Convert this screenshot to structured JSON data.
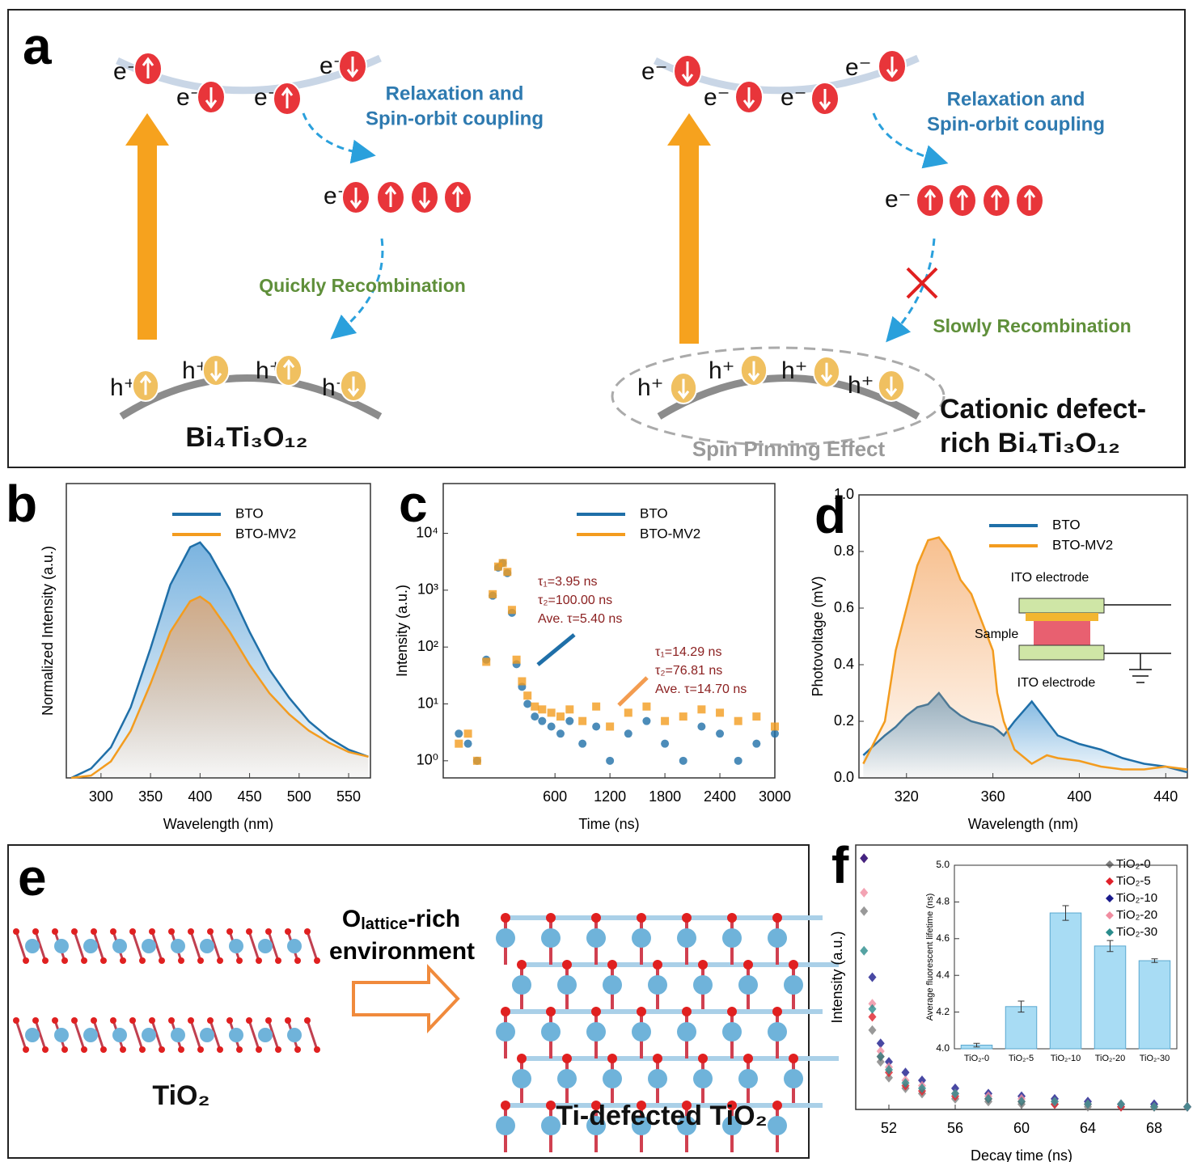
{
  "panels": {
    "a": {
      "label": "a",
      "left": {
        "e": [
          "e⁻",
          "e⁻",
          "e⁻",
          "e⁻",
          "e⁻"
        ],
        "h": [
          "h⁺",
          "h⁺",
          "h⁺",
          "h⁺"
        ],
        "relax1": "Relaxation and",
        "relax2": "Spin-orbit coupling",
        "recomb": "Quickly Recombination",
        "name": "Bi₄Ti₃O₁₂"
      },
      "right": {
        "e": [
          "e⁻",
          "e⁻",
          "e⁻",
          "e⁻",
          "e⁻"
        ],
        "h": [
          "h⁺",
          "h⁺",
          "h⁺",
          "h⁺"
        ],
        "relax1": "Relaxation and",
        "relax2": "Spin-orbit coupling",
        "recomb": "Slowly Recombination",
        "pin": "Spin Pinning Effect",
        "name1": "Cationic defect-",
        "name2": "rich Bi₄Ti₃O₁₂"
      }
    },
    "e": {
      "label": "e",
      "left": "TiO₂",
      "right": "Ti-defected TiO₂",
      "arrow_main": "O",
      "arrow_sub": "lattice",
      "arrow_rest": "-rich",
      "arrow2": "environment"
    }
  },
  "chart_data": [
    {
      "type": "line",
      "panel_label": "b",
      "xlabel": "Wavelength (nm)",
      "ylabel": "Normalized Intensity (a.u.)",
      "area": true,
      "legend": "upper right",
      "x": [
        270,
        290,
        310,
        330,
        350,
        370,
        390,
        400,
        410,
        430,
        450,
        470,
        490,
        510,
        530,
        550,
        570
      ],
      "xlim": [
        265,
        572
      ],
      "xticks": [
        300,
        350,
        400,
        450,
        500,
        550
      ],
      "ylim": [
        0,
        1.25
      ],
      "series": [
        {
          "name": "BTO",
          "color": "#1f6fa8",
          "values": [
            0.0,
            0.04,
            0.13,
            0.3,
            0.55,
            0.82,
            0.98,
            1.0,
            0.95,
            0.8,
            0.62,
            0.46,
            0.34,
            0.24,
            0.17,
            0.12,
            0.09
          ]
        },
        {
          "name": "BTO-MV2",
          "color": "#f39c1f",
          "values": [
            0.0,
            0.01,
            0.07,
            0.2,
            0.4,
            0.62,
            0.75,
            0.77,
            0.74,
            0.62,
            0.48,
            0.36,
            0.27,
            0.2,
            0.15,
            0.11,
            0.09
          ]
        }
      ]
    },
    {
      "type": "scatter",
      "panel_label": "c",
      "xlabel": "Time (ns)",
      "ylabel": "Intensity (a.u.)",
      "log_y": true,
      "legend": "upper right",
      "x": [
        -450,
        -350,
        -250,
        -150,
        -80,
        -20,
        30,
        80,
        130,
        180,
        240,
        300,
        380,
        460,
        560,
        660,
        760,
        900,
        1050,
        1200,
        1400,
        1600,
        1800,
        2000,
        2200,
        2400,
        2600,
        2800,
        3000
      ],
      "xlim": [
        -620,
        3000
      ],
      "xticks": [
        600,
        1200,
        1800,
        2400,
        3000
      ],
      "ylim": [
        0.5,
        75000
      ],
      "yticks": [
        {
          "value": 1,
          "label": "10⁰"
        },
        {
          "value": 10,
          "label": "10¹"
        },
        {
          "value": 100,
          "label": "10²"
        },
        {
          "value": 1000,
          "label": "10³"
        },
        {
          "value": 10000,
          "label": "10⁴"
        }
      ],
      "series": [
        {
          "name": "BTO",
          "color": "#1f6fa8",
          "marker": "circle",
          "values": [
            3,
            2,
            1,
            60,
            800,
            2500,
            3000,
            2000,
            400,
            50,
            20,
            10,
            6,
            5,
            4,
            3,
            5,
            2,
            4,
            1,
            3,
            5,
            2,
            1,
            4,
            3,
            1,
            2,
            3
          ]
        },
        {
          "name": "BTO-MV2",
          "color": "#f39c1f",
          "marker": "square",
          "values": [
            2,
            3,
            1,
            55,
            850,
            2600,
            3000,
            2100,
            450,
            60,
            25,
            14,
            9,
            8,
            7,
            6,
            8,
            5,
            9,
            4,
            7,
            9,
            5,
            6,
            8,
            7,
            5,
            6,
            4
          ]
        }
      ],
      "annotations": [
        "τ₁=3.95 ns",
        "τ₂=100.00 ns",
        "Ave. τ=5.40 ns",
        "τ₁=14.29 ns",
        "τ₂=76.81 ns",
        "Ave. τ=14.70 ns"
      ]
    },
    {
      "type": "line",
      "panel_label": "d",
      "xlabel": "Wavelength (nm)",
      "ylabel": "Photovoltage (mV)",
      "area": true,
      "legend": "upper right",
      "x": [
        300,
        310,
        315,
        320,
        325,
        330,
        335,
        340,
        345,
        350,
        355,
        360,
        362,
        365,
        370,
        378,
        385,
        390,
        400,
        410,
        420,
        430,
        440,
        450
      ],
      "xlim": [
        298,
        450
      ],
      "xticks": [
        320,
        360,
        400,
        440
      ],
      "ylim": [
        0,
        1.0
      ],
      "yticks": [
        {
          "value": 0,
          "label": "0.0"
        },
        {
          "value": 0.2,
          "label": "0.2"
        },
        {
          "value": 0.4,
          "label": "0.4"
        },
        {
          "value": 0.6,
          "label": "0.6"
        },
        {
          "value": 0.8,
          "label": "0.8"
        },
        {
          "value": 1,
          "label": "1.0"
        }
      ],
      "series": [
        {
          "name": "BTO",
          "color": "#1f6fa8",
          "values": [
            0.08,
            0.15,
            0.18,
            0.22,
            0.25,
            0.26,
            0.3,
            0.25,
            0.22,
            0.2,
            0.19,
            0.18,
            0.17,
            0.15,
            0.2,
            0.27,
            0.2,
            0.15,
            0.12,
            0.1,
            0.07,
            0.05,
            0.04,
            0.02
          ]
        },
        {
          "name": "BTO-MV2",
          "color": "#f39c1f",
          "values": [
            0.05,
            0.2,
            0.45,
            0.6,
            0.75,
            0.84,
            0.85,
            0.8,
            0.7,
            0.65,
            0.55,
            0.45,
            0.3,
            0.2,
            0.1,
            0.05,
            0.08,
            0.07,
            0.06,
            0.04,
            0.03,
            0.03,
            0.04,
            0.03
          ]
        }
      ],
      "annotations": [
        "ITO electrode",
        "Sample",
        "ITO electrode"
      ]
    },
    {
      "type": "scatter",
      "panel_label": "f",
      "xlabel": "Decay time (ns)",
      "ylabel": "Intensity (a.u.)",
      "legend": "upper right",
      "x": [
        50.5,
        51,
        51.5,
        52,
        53,
        54,
        56,
        58,
        60,
        62,
        64,
        66,
        68,
        70
      ],
      "xlim": [
        50,
        70
      ],
      "xticks": [
        52,
        56,
        60,
        64,
        68
      ],
      "ylim": [
        0,
        1
      ],
      "series": [
        {
          "name": "TiO₂-0",
          "color": "#7f7f7f",
          "marker": "diamond",
          "values": [
            0.75,
            0.3,
            0.18,
            0.12,
            0.08,
            0.06,
            0.04,
            0.03,
            0.02,
            0.02,
            0.01,
            0.01,
            0.01,
            0.01
          ]
        },
        {
          "name": "TiO₂-5",
          "color": "#e0202a",
          "marker": "diamond",
          "values": [
            0.95,
            0.35,
            0.2,
            0.14,
            0.09,
            0.07,
            0.05,
            0.04,
            0.03,
            0.02,
            0.02,
            0.01,
            0.01,
            0.01
          ]
        },
        {
          "name": "TiO₂-10",
          "color": "#1a1a8c",
          "marker": "diamond",
          "values": [
            0.95,
            0.5,
            0.25,
            0.18,
            0.14,
            0.11,
            0.08,
            0.06,
            0.05,
            0.04,
            0.03,
            0.02,
            0.02,
            0.01
          ]
        },
        {
          "name": "TiO₂-20",
          "color": "#f08ca0",
          "marker": "diamond",
          "values": [
            0.82,
            0.4,
            0.22,
            0.16,
            0.11,
            0.09,
            0.06,
            0.05,
            0.04,
            0.03,
            0.02,
            0.02,
            0.01,
            0.01
          ]
        },
        {
          "name": "TiO₂-30",
          "color": "#2a8c8c",
          "marker": "diamond",
          "values": [
            0.6,
            0.38,
            0.2,
            0.15,
            0.1,
            0.08,
            0.06,
            0.04,
            0.03,
            0.03,
            0.02,
            0.02,
            0.01,
            0.01
          ]
        }
      ]
    },
    {
      "type": "bar",
      "ylabel": "Average fluorescent lifetime (ns)",
      "color": "#a8dcf4",
      "categories": [
        "TiO₂-0",
        "TiO₂-5",
        "TiO₂-10",
        "TiO₂-20",
        "TiO₂-30"
      ],
      "values": [
        4.02,
        4.23,
        4.74,
        4.56,
        4.48
      ],
      "errors": [
        0.01,
        0.03,
        0.04,
        0.03,
        0.01
      ],
      "ylim": [
        4.0,
        5.0
      ],
      "yticks": [
        {
          "value": 4,
          "label": "4.0"
        },
        {
          "value": 4.2,
          "label": "4.2"
        },
        {
          "value": 4.4,
          "label": "4.4"
        },
        {
          "value": 4.6,
          "label": "4.6"
        },
        {
          "value": 4.8,
          "label": "4.8"
        },
        {
          "value": 5,
          "label": "5.0"
        }
      ]
    }
  ]
}
